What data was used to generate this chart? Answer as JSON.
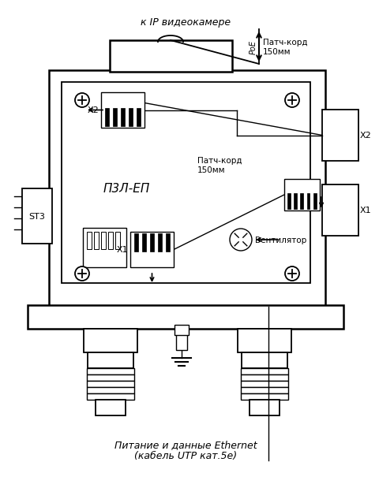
{
  "bg_color": "#ffffff",
  "line_color": "#000000",
  "fig_width": 4.5,
  "fig_height": 6.0,
  "label_top": "к IP видеокамере",
  "label_poe": "PoE",
  "label_patch1": "Патч-корд\n150мм",
  "label_patch2": "Патч-корд\n150мм",
  "label_pzl": "П3Л-ЕП",
  "label_vent": "Вентилятор",
  "label_st3": "ST3",
  "label_x1": "X1",
  "label_x2": "X2",
  "label_x1r": "X1",
  "label_x2r": "X2",
  "label_bottom1": "Питание и данные Ethernet",
  "label_bottom2": "(кабель UTP кат.5e)"
}
